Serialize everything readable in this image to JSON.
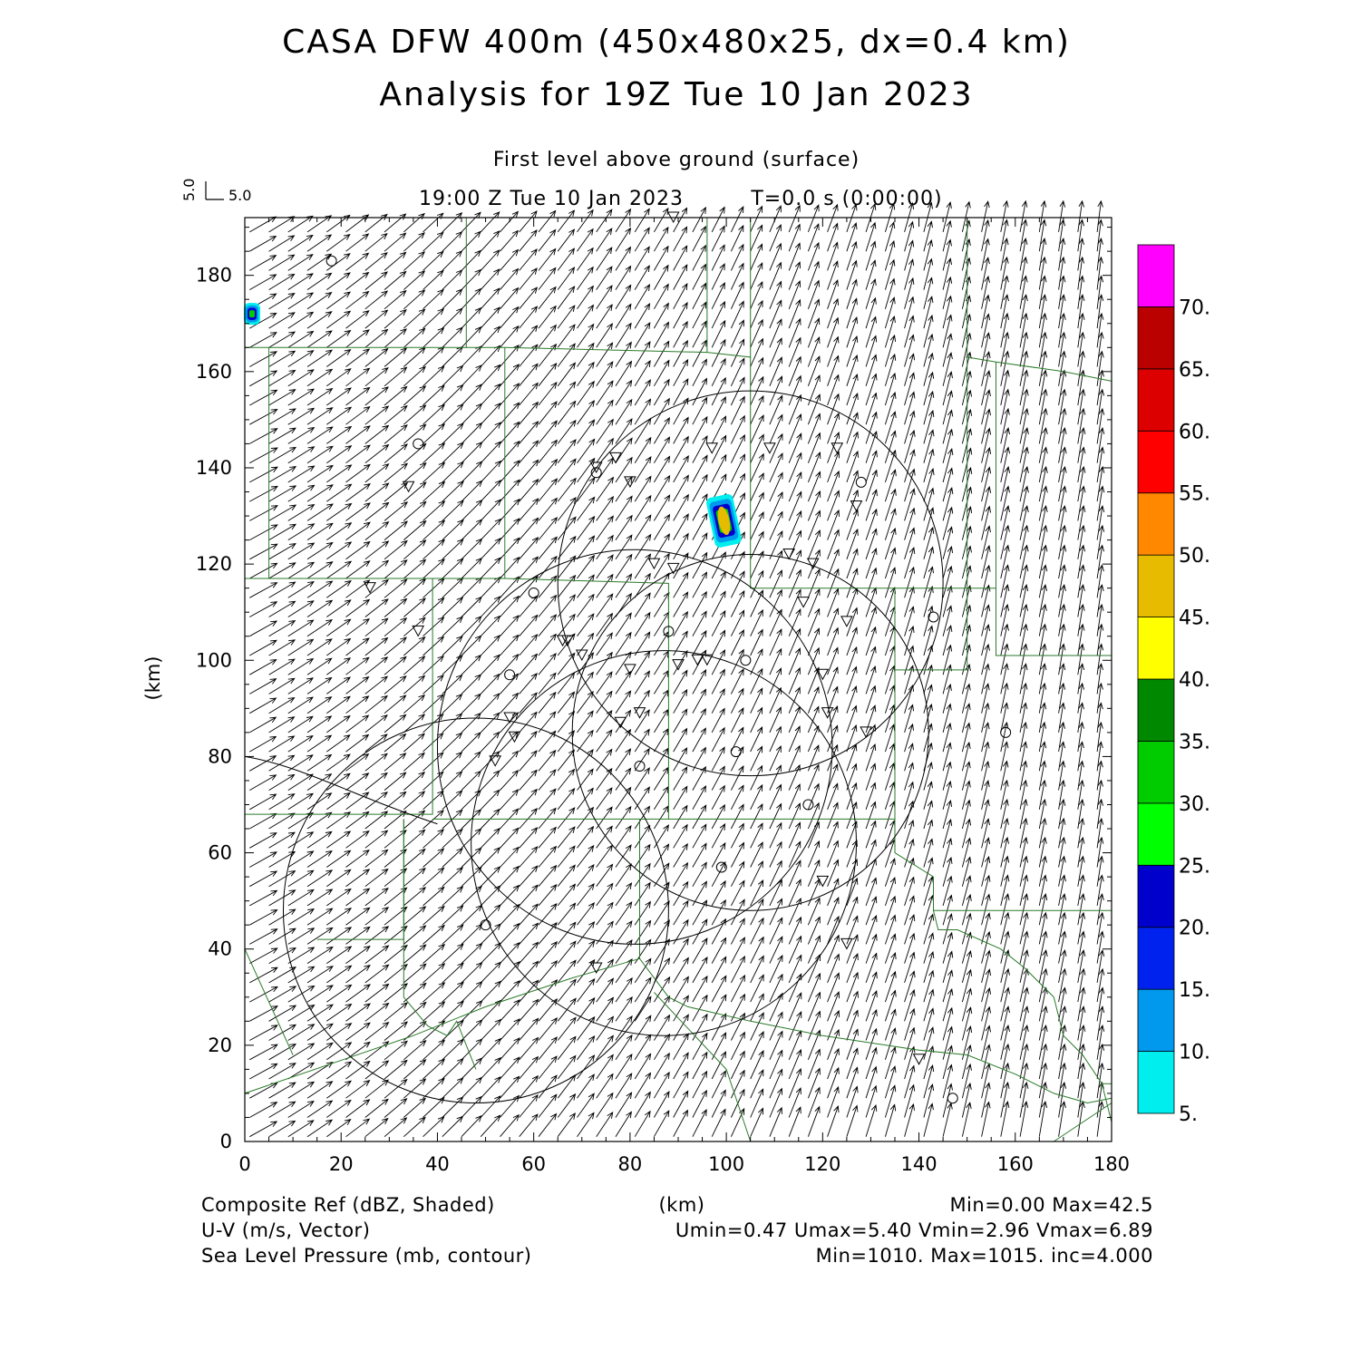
{
  "header": {
    "title_line1": "CASA DFW 400m (450x480x25, dx=0.4 km)",
    "title_line2": "Analysis for 19Z Tue 10 Jan 2023",
    "level": "First level above ground (surface)",
    "time": "19:00 Z Tue 10 Jan 2023",
    "tstamp": "T=0.0 s (0:00:00)",
    "ref_vector_u": "5.0",
    "ref_vector_v": "5.0"
  },
  "axes": {
    "x_ticks": [
      "0",
      "20",
      "40",
      "60",
      "80",
      "100",
      "120",
      "140",
      "160",
      "180"
    ],
    "y_ticks": [
      "0",
      "20",
      "40",
      "60",
      "80",
      "100",
      "120",
      "140",
      "160",
      "180"
    ],
    "x_label": "(km)",
    "y_label": "(km)",
    "xlim": [
      0,
      180
    ],
    "ylim": [
      0,
      192
    ]
  },
  "colorbar": {
    "labels": [
      "5.",
      "10.",
      "15.",
      "20.",
      "25.",
      "30.",
      "35.",
      "40.",
      "45.",
      "50.",
      "55.",
      "60.",
      "65.",
      "70."
    ],
    "colors": [
      "#00eeee",
      "#0099ee",
      "#0022ee",
      "#0000cc",
      "#00ff00",
      "#00cc00",
      "#008800",
      "#ffff00",
      "#e6bb00",
      "#ff8800",
      "#ff0000",
      "#dd0000",
      "#bb0000",
      "#ff00ff"
    ]
  },
  "footer": {
    "field1": "Composite Ref (dBZ, Shaded)",
    "field1_stats": "Min=0.00 Max=42.5",
    "field2": "U-V (m/s, Vector)",
    "field2_stats": "Umin=0.47 Umax=5.40 Vmin=2.96 Vmax=6.89",
    "field3": "Sea Level Pressure (mb, contour)",
    "field3_stats": "Min=1010. Max=1015. inc=4.000",
    "x_units": "(km)"
  },
  "chart_data": {
    "type": "map",
    "reflectivity_cells": [
      {
        "x": 1.5,
        "y": 172,
        "dbz": 30
      },
      {
        "x": 99.5,
        "y": 129,
        "dbz": 42.5
      }
    ],
    "radar_range_rings": [
      {
        "cx": 105,
        "cy": 116,
        "r": 40
      },
      {
        "cx": 81,
        "cy": 82,
        "r": 41
      },
      {
        "cx": 87,
        "cy": 62,
        "r": 40
      },
      {
        "cx": 48,
        "cy": 48,
        "r": 40
      },
      {
        "cx": 105,
        "cy": 85,
        "r": 37
      }
    ],
    "wind_field": {
      "u_range": [
        0.47,
        5.4
      ],
      "v_range": [
        2.96,
        6.89
      ]
    }
  }
}
